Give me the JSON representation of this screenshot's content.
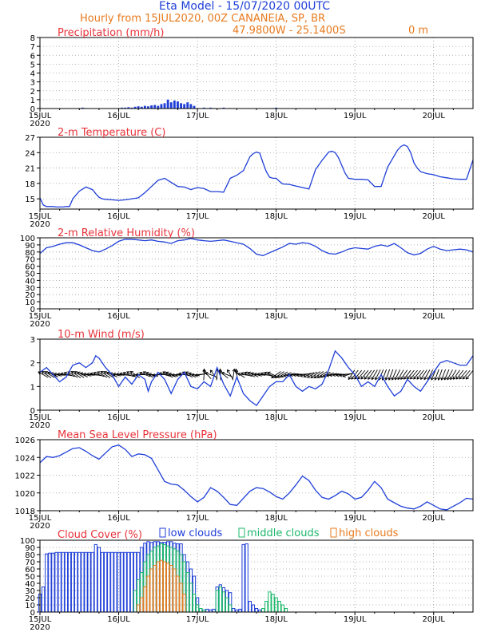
{
  "header": {
    "title": "Eta Model - 15/07/2020 00UTC",
    "subtitle": "Hourly from 15JUL2020, 00Z  CANANEIA, SP, BR",
    "coords": "47.9800W - 25.1400S",
    "elevation": "0   m"
  },
  "colors": {
    "series": "#1f3fd8",
    "panel_title": "#e8333a",
    "header_title": "#1f3fd8",
    "header_sub": "#e87a1e",
    "mid_clouds": "#1bb86a",
    "high_clouds": "#e87a1e",
    "grid": "#9a9a9a",
    "arrows": "#000000"
  },
  "time_axis": {
    "range_hours": [
      0,
      132
    ],
    "ticks": [
      {
        "hour": 0,
        "label": "15JUL",
        "year": "2020"
      },
      {
        "hour": 24,
        "label": "16JUL"
      },
      {
        "hour": 48,
        "label": "17JUL"
      },
      {
        "hour": 72,
        "label": "18JUL"
      },
      {
        "hour": 96,
        "label": "19JUL"
      },
      {
        "hour": 120,
        "label": "20JUL"
      }
    ]
  },
  "chart_data": [
    {
      "id": "precip",
      "type": "bar",
      "title": "Precipitation (mm/h)",
      "ylim": [
        0,
        8
      ],
      "yticks": [
        "0",
        "1",
        "2",
        "3",
        "4",
        "5",
        "6",
        "7",
        "8"
      ],
      "x": [
        12,
        13,
        14,
        24,
        25,
        26,
        27,
        28,
        29,
        30,
        31,
        32,
        33,
        34,
        35,
        36,
        37,
        38,
        39,
        40,
        41,
        42,
        43,
        44,
        45,
        46,
        47,
        50,
        51,
        52,
        53,
        55,
        56,
        58,
        59,
        71,
        72
      ],
      "values": [
        0.05,
        0.1,
        0.05,
        0.05,
        0.1,
        0.1,
        0.15,
        0.1,
        0.2,
        0.25,
        0.2,
        0.3,
        0.25,
        0.35,
        0.4,
        0.3,
        0.5,
        0.6,
        1.0,
        0.7,
        0.9,
        0.8,
        0.6,
        0.5,
        0.7,
        0.5,
        0.3,
        0.1,
        0.05,
        0.1,
        0.05,
        0.05,
        0.1,
        0.05,
        0.05,
        0.05,
        0.1
      ]
    },
    {
      "id": "temp",
      "type": "line",
      "title": "2-m Temperature (C)",
      "ylim": [
        13,
        27
      ],
      "yticks": [
        "15",
        "18",
        "21",
        "24",
        "27"
      ],
      "x": [
        0,
        1,
        2,
        3,
        4,
        5,
        6,
        7,
        8,
        9,
        10,
        12,
        14,
        16,
        17,
        18,
        19,
        20,
        22,
        24,
        26,
        28,
        30,
        32,
        34,
        36,
        38,
        40,
        42,
        44,
        46,
        48,
        50,
        52,
        54,
        56,
        58,
        60,
        62,
        64,
        65,
        66,
        67,
        68,
        69,
        70,
        71,
        72,
        73,
        74,
        76,
        78,
        80,
        82,
        84,
        86,
        87,
        88,
        89,
        90,
        91,
        92,
        93,
        94,
        96,
        98,
        100,
        102,
        104,
        106,
        108,
        109,
        110,
        111,
        112,
        113,
        114,
        115,
        116,
        118,
        120,
        122,
        124,
        126,
        128,
        130,
        132
      ],
      "values": [
        15.2,
        13.8,
        13.5,
        13.5,
        13.5,
        13.4,
        13.4,
        13.4,
        13.5,
        13.5,
        15.0,
        16.5,
        17.3,
        16.8,
        16.0,
        15.3,
        15.0,
        14.9,
        14.8,
        14.7,
        14.8,
        15.0,
        15.2,
        16.2,
        17.4,
        18.6,
        19.0,
        18.2,
        17.4,
        17.3,
        16.8,
        17.2,
        17.0,
        16.4,
        16.4,
        16.3,
        19.0,
        19.6,
        20.5,
        23.2,
        23.8,
        24.1,
        23.9,
        22.0,
        20.3,
        19.2,
        19.0,
        19.0,
        18.4,
        17.9,
        17.8,
        17.5,
        17.2,
        16.9,
        20.7,
        22.5,
        23.3,
        24.1,
        24.3,
        24.0,
        23.0,
        21.5,
        20.0,
        19.0,
        18.8,
        18.8,
        18.7,
        17.4,
        17.4,
        21.2,
        23.4,
        24.5,
        25.2,
        25.5,
        25.2,
        24.0,
        22.0,
        21.0,
        20.3,
        19.9,
        19.7,
        19.3,
        19.1,
        18.9,
        18.8,
        18.8,
        22.6
      ]
    },
    {
      "id": "rh",
      "type": "line",
      "title": "2-m Relative Humidity (%)",
      "ylim": [
        0,
        100
      ],
      "yticks": [
        "0",
        "10",
        "20",
        "30",
        "40",
        "50",
        "60",
        "70",
        "80",
        "90",
        "100"
      ],
      "x": [
        0,
        2,
        4,
        6,
        8,
        10,
        12,
        14,
        16,
        18,
        20,
        22,
        24,
        26,
        28,
        30,
        32,
        34,
        36,
        38,
        40,
        42,
        44,
        46,
        48,
        50,
        52,
        54,
        56,
        58,
        60,
        62,
        64,
        66,
        68,
        70,
        72,
        74,
        76,
        78,
        80,
        82,
        84,
        86,
        88,
        90,
        92,
        94,
        96,
        98,
        100,
        102,
        104,
        106,
        108,
        110,
        112,
        114,
        116,
        118,
        120,
        122,
        124,
        126,
        128,
        130,
        132
      ],
      "values": [
        78,
        86,
        88,
        91,
        93,
        93,
        90,
        86,
        82,
        80,
        84,
        89,
        95,
        98,
        98,
        97,
        96,
        97,
        95,
        94,
        92,
        96,
        97,
        99,
        97,
        96,
        95,
        96,
        97,
        95,
        93,
        91,
        85,
        77,
        75,
        79,
        83,
        87,
        92,
        91,
        93,
        92,
        88,
        82,
        78,
        77,
        80,
        84,
        86,
        85,
        84,
        88,
        90,
        88,
        92,
        86,
        79,
        76,
        78,
        84,
        88,
        84,
        82,
        83,
        84,
        83,
        80
      ]
    },
    {
      "id": "wind",
      "type": "line",
      "title": "10-m Wind (m/s)",
      "ylim": [
        0,
        3
      ],
      "yticks": [
        "0",
        "1",
        "2",
        "3"
      ],
      "x": [
        0,
        2,
        4,
        6,
        8,
        10,
        12,
        14,
        16,
        17,
        18,
        20,
        22,
        24,
        26,
        28,
        30,
        32,
        33,
        34,
        36,
        38,
        40,
        42,
        44,
        46,
        48,
        50,
        52,
        54,
        56,
        58,
        60,
        62,
        64,
        66,
        68,
        70,
        72,
        74,
        76,
        78,
        80,
        82,
        84,
        86,
        88,
        90,
        92,
        94,
        96,
        98,
        100,
        102,
        104,
        106,
        108,
        110,
        112,
        114,
        116,
        118,
        120,
        122,
        124,
        126,
        128,
        130,
        132
      ],
      "values": [
        1.6,
        1.8,
        1.5,
        1.2,
        1.4,
        1.9,
        2.0,
        1.8,
        2.0,
        2.3,
        2.2,
        1.8,
        1.5,
        1.0,
        1.4,
        1.1,
        1.5,
        1.3,
        0.8,
        1.2,
        1.6,
        1.3,
        0.7,
        1.3,
        1.6,
        1.0,
        0.9,
        1.2,
        1.0,
        1.8,
        1.1,
        0.6,
        1.4,
        0.7,
        0.4,
        0.2,
        0.6,
        1.0,
        1.2,
        1.2,
        1.5,
        1.0,
        0.8,
        1.0,
        0.9,
        1.1,
        1.7,
        2.5,
        2.2,
        1.8,
        1.5,
        1.0,
        1.2,
        1.0,
        1.5,
        1.0,
        0.6,
        0.8,
        1.3,
        1.0,
        0.8,
        1.2,
        1.6,
        2.0,
        2.1,
        2.0,
        1.9,
        1.9,
        2.3
      ]
    },
    {
      "id": "mslp",
      "type": "line",
      "title": "Mean Sea Level Pressure (hPa)",
      "ylim": [
        1018,
        1026
      ],
      "yticks": [
        "1018",
        "1020",
        "1022",
        "1024",
        "1026"
      ],
      "x": [
        0,
        2,
        4,
        6,
        8,
        10,
        12,
        14,
        16,
        18,
        20,
        22,
        24,
        26,
        28,
        30,
        32,
        34,
        36,
        38,
        40,
        42,
        44,
        46,
        48,
        50,
        52,
        54,
        56,
        58,
        60,
        62,
        64,
        66,
        68,
        70,
        72,
        74,
        76,
        78,
        80,
        82,
        84,
        86,
        88,
        90,
        92,
        94,
        96,
        98,
        100,
        102,
        104,
        106,
        108,
        110,
        112,
        114,
        116,
        118,
        120,
        122,
        124,
        126,
        128,
        130,
        132
      ],
      "values": [
        1023.4,
        1024.1,
        1024.0,
        1024.2,
        1024.6,
        1025.0,
        1025.1,
        1024.7,
        1024.2,
        1023.8,
        1024.5,
        1025.2,
        1025.4,
        1024.9,
        1024.1,
        1024.4,
        1024.3,
        1023.9,
        1022.6,
        1021.3,
        1021.0,
        1020.9,
        1020.3,
        1019.6,
        1019.0,
        1019.5,
        1020.6,
        1020.2,
        1019.5,
        1018.7,
        1018.6,
        1019.4,
        1020.2,
        1020.6,
        1020.5,
        1020.1,
        1019.6,
        1019.3,
        1020.0,
        1020.9,
        1021.9,
        1021.4,
        1020.3,
        1019.5,
        1019.3,
        1019.7,
        1020.2,
        1019.9,
        1019.3,
        1019.5,
        1020.3,
        1021.3,
        1020.6,
        1019.3,
        1018.9,
        1018.5,
        1018.3,
        1018.2,
        1018.5,
        1019.0,
        1018.6,
        1018.2,
        1018.1,
        1018.5,
        1018.9,
        1019.4,
        1019.3
      ]
    },
    {
      "id": "clouds",
      "type": "bar",
      "title": "Cloud Cover (%)",
      "ylim": [
        0,
        100
      ],
      "yticks": [
        "0",
        "10",
        "20",
        "30",
        "40",
        "50",
        "60",
        "70",
        "80",
        "90",
        "100"
      ],
      "legend": [
        "low clouds",
        "middle clouds",
        "high clouds"
      ],
      "low": {
        "x": [
          0,
          1,
          2,
          3,
          4,
          5,
          6,
          7,
          8,
          9,
          10,
          11,
          12,
          13,
          14,
          15,
          16,
          17,
          18,
          19,
          20,
          21,
          22,
          23,
          24,
          25,
          26,
          27,
          28,
          29,
          30,
          31,
          32,
          33,
          34,
          35,
          36,
          37,
          38,
          39,
          40,
          41,
          42,
          43,
          44,
          45,
          46,
          47,
          48,
          49,
          50,
          51,
          52,
          53,
          54,
          55,
          56,
          57,
          58,
          59,
          60,
          61,
          62,
          63,
          64,
          65,
          66,
          67,
          68,
          69,
          70,
          71,
          72,
          73,
          74,
          75
        ],
        "values": [
          25,
          35,
          81,
          82,
          82,
          83,
          83,
          83,
          83,
          83,
          83,
          83,
          83,
          83,
          83,
          83,
          83,
          94,
          90,
          83,
          83,
          83,
          83,
          83,
          83,
          83,
          83,
          83,
          83,
          83,
          83,
          90,
          96,
          98,
          97,
          98,
          98,
          97,
          97,
          98,
          98,
          96,
          95,
          95,
          80,
          70,
          60,
          50,
          20,
          5,
          3,
          4,
          3,
          4,
          35,
          38,
          34,
          30,
          27,
          5,
          3,
          4,
          94,
          95,
          15,
          10,
          5,
          3,
          0,
          0,
          0,
          0,
          0,
          0,
          0,
          0
        ]
      },
      "mid": {
        "x": [
          29,
          30,
          31,
          32,
          33,
          34,
          35,
          36,
          37,
          38,
          39,
          40,
          41,
          42,
          43,
          44,
          45,
          46,
          47,
          48,
          49,
          50,
          54,
          55,
          56,
          57,
          58,
          68,
          69,
          70,
          71,
          72,
          73,
          74,
          75
        ],
        "values": [
          30,
          45,
          55,
          70,
          80,
          85,
          90,
          92,
          95,
          94,
          92,
          90,
          88,
          85,
          80,
          70,
          55,
          40,
          25,
          10,
          5,
          3,
          30,
          35,
          28,
          20,
          10,
          5,
          15,
          28,
          25,
          20,
          15,
          10,
          5
        ]
      },
      "high": {
        "x": [
          30,
          31,
          32,
          33,
          34,
          35,
          36,
          37,
          38,
          39,
          40,
          41,
          42,
          43,
          44
        ],
        "values": [
          10,
          20,
          35,
          50,
          60,
          65,
          70,
          72,
          70,
          68,
          65,
          60,
          50,
          40,
          25
        ]
      }
    }
  ]
}
